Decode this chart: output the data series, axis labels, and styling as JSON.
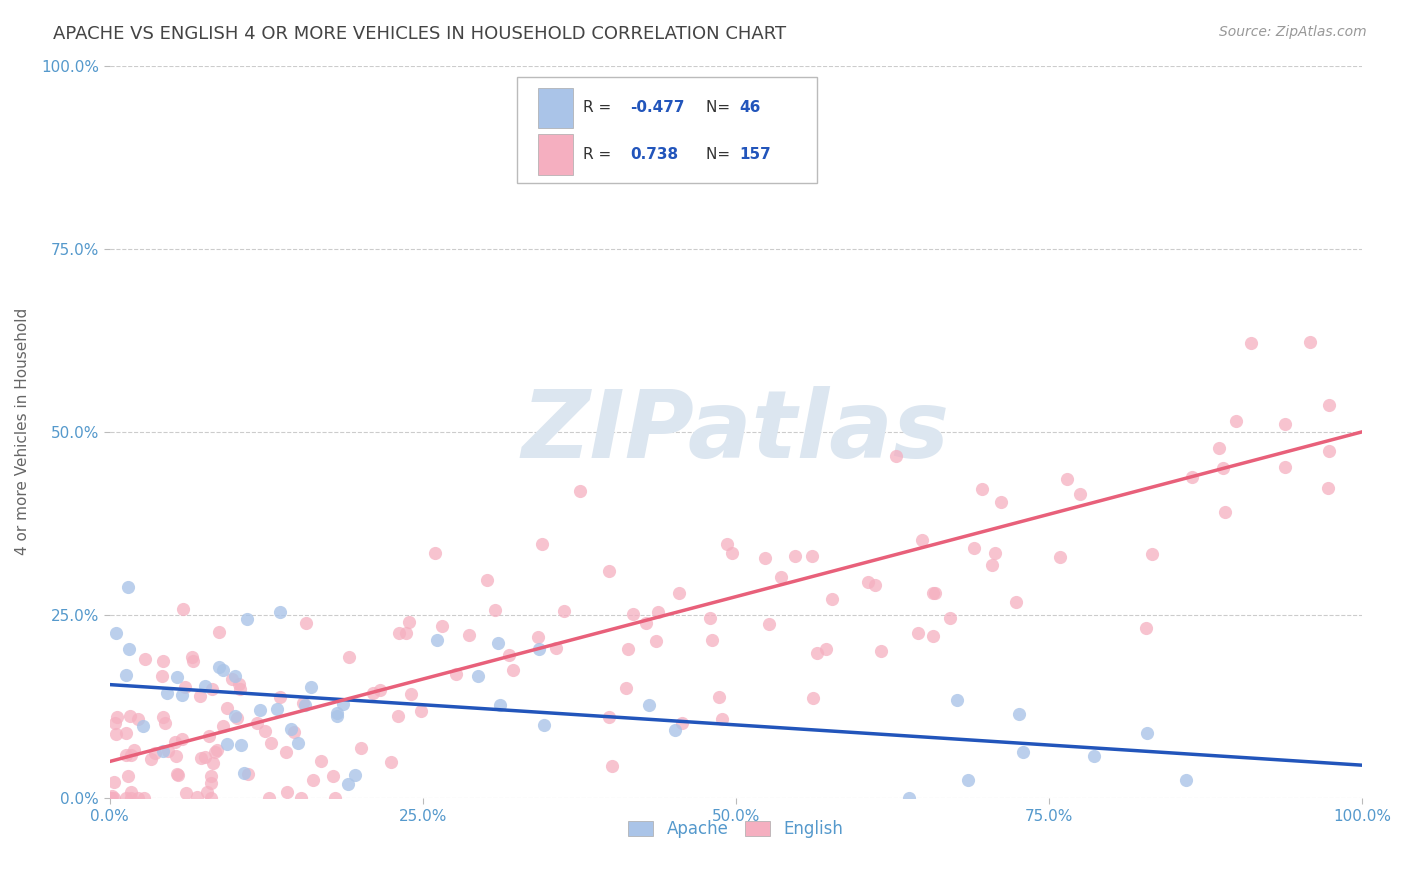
{
  "title": "APACHE VS ENGLISH 4 OR MORE VEHICLES IN HOUSEHOLD CORRELATION CHART",
  "source": "Source: ZipAtlas.com",
  "ylabel": "4 or more Vehicles in Household",
  "legend_apache": "Apache",
  "legend_english": "English",
  "apache_R": -0.477,
  "apache_N": 46,
  "english_R": 0.738,
  "english_N": 157,
  "apache_color": "#aac4e8",
  "english_color": "#f5afc0",
  "apache_line_color": "#2255bb",
  "english_line_color": "#e8607a",
  "background_color": "#ffffff",
  "grid_color": "#cccccc",
  "watermark_text": "ZIPatlas",
  "watermark_color": "#dce6f0",
  "title_color": "#444444",
  "axis_color": "#5599cc",
  "xlim": [
    0.0,
    1.0
  ],
  "ylim": [
    0.0,
    1.0
  ],
  "title_fontsize": 13,
  "axis_label_fontsize": 11,
  "tick_fontsize": 11,
  "apache_line_y0": 0.155,
  "apache_line_y1": 0.045,
  "english_line_y0": 0.05,
  "english_line_y1": 0.5
}
